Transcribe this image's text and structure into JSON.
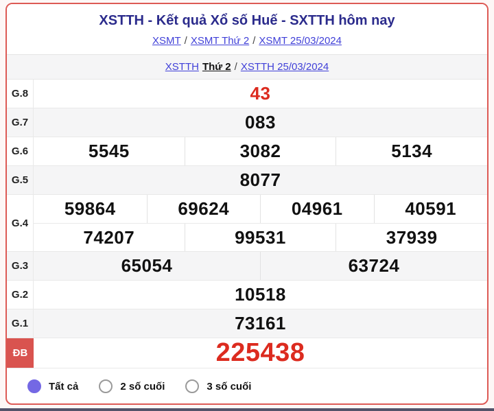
{
  "colors": {
    "title_navy": "#2b2b8c",
    "link_blue": "#4040d8",
    "result_red": "#dc2b1f",
    "card_border_red": "#dd5a55",
    "special_badge_bg": "#d9534f",
    "radio_selected_purple": "#7468e4",
    "alt_row_bg": "#f5f5f6"
  },
  "header": {
    "title": "XSTTH - Kết quả Xổ số Huế - SXTTH hôm nay",
    "separator": "/",
    "breadcrumb_top": [
      {
        "label": "XSMT"
      },
      {
        "label": "XSMT Thứ 2"
      },
      {
        "label": "XSMT 25/03/2024"
      }
    ],
    "breadcrumb_sub": {
      "link1": "XSTTH",
      "bold_text": "Thứ 2",
      "separator": "/",
      "link2": "XSTTH 25/03/2024"
    }
  },
  "results_table": {
    "rows": [
      {
        "label": "G.8",
        "highlight": true,
        "jackpot": false,
        "groups": [
          [
            "43"
          ]
        ]
      },
      {
        "label": "G.7",
        "highlight": false,
        "jackpot": false,
        "groups": [
          [
            "083"
          ]
        ]
      },
      {
        "label": "G.6",
        "highlight": false,
        "jackpot": false,
        "groups": [
          [
            "5545",
            "3082",
            "5134"
          ]
        ]
      },
      {
        "label": "G.5",
        "highlight": false,
        "jackpot": false,
        "groups": [
          [
            "8077"
          ]
        ]
      },
      {
        "label": "G.4",
        "highlight": false,
        "jackpot": false,
        "groups": [
          [
            "59864",
            "69624",
            "04961",
            "40591"
          ],
          [
            "74207",
            "99531",
            "37939"
          ]
        ]
      },
      {
        "label": "G.3",
        "highlight": false,
        "jackpot": false,
        "groups": [
          [
            "65054",
            "63724"
          ]
        ]
      },
      {
        "label": "G.2",
        "highlight": false,
        "jackpot": false,
        "groups": [
          [
            "10518"
          ]
        ]
      },
      {
        "label": "G.1",
        "highlight": false,
        "jackpot": false,
        "groups": [
          [
            "73161"
          ]
        ]
      },
      {
        "label": "ĐB",
        "highlight": true,
        "jackpot": true,
        "groups": [
          [
            "225438"
          ]
        ]
      }
    ]
  },
  "filters": {
    "options": [
      {
        "label": "Tất cả",
        "selected": true
      },
      {
        "label": "2 số cuối",
        "selected": false
      },
      {
        "label": "3 số cuối",
        "selected": false
      }
    ]
  }
}
